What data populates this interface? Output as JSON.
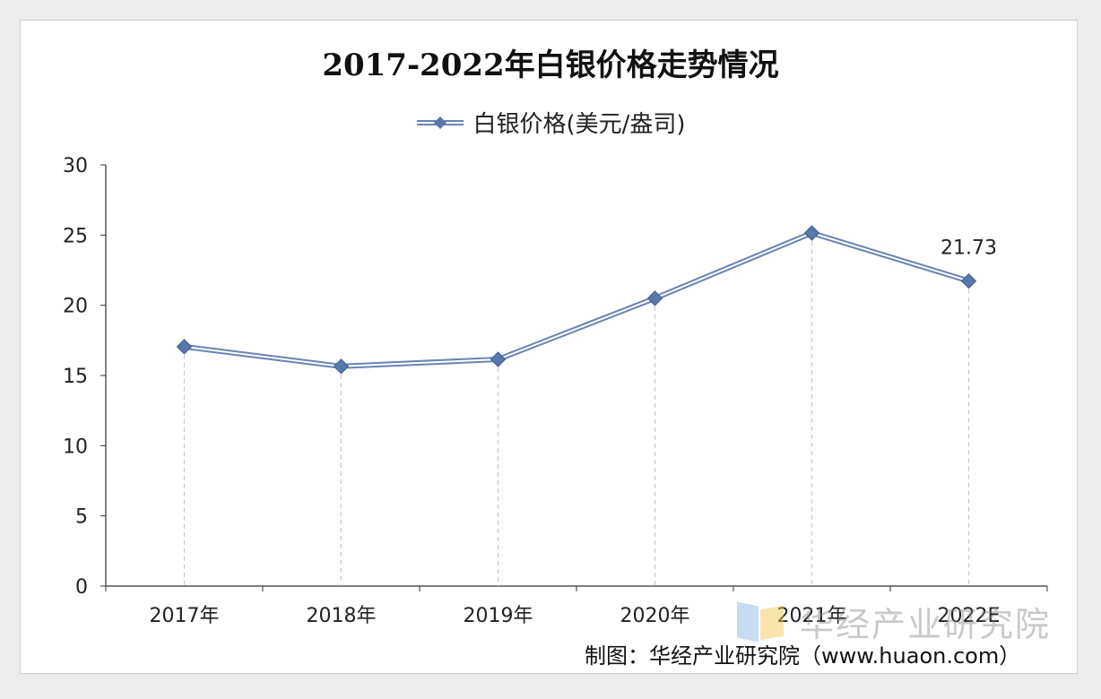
{
  "title": "2017-2022年白银价格走势情况",
  "legend": {
    "label": "白银价格(美元/盎司)"
  },
  "source": "制图：华经产业研究院（www.huaon.com）",
  "watermark": "华经产业研究院",
  "colors": {
    "series": "#6a83b5",
    "marker": "#5877aa",
    "line_highlight": "#ffffff",
    "dash": "#c8c8c8",
    "axis": "#333333"
  },
  "chart_data": {
    "type": "line",
    "title": "2017-2022年白银价格走势情况",
    "categories": [
      "2017年",
      "2018年",
      "2019年",
      "2020年",
      "2021年",
      "2022E"
    ],
    "series": [
      {
        "name": "白银价格(美元/盎司)",
        "values": [
          17.05,
          15.65,
          16.15,
          20.5,
          25.15,
          21.73
        ]
      }
    ],
    "data_labels": [
      {
        "category": "2022E",
        "text": "21.73"
      }
    ],
    "ylim": [
      0,
      30
    ],
    "yticks": [
      0,
      5,
      10,
      15,
      20,
      25,
      30
    ],
    "xlabel": "",
    "ylabel": "",
    "grid": false,
    "drop_lines": true,
    "legend_position": "top-center"
  }
}
